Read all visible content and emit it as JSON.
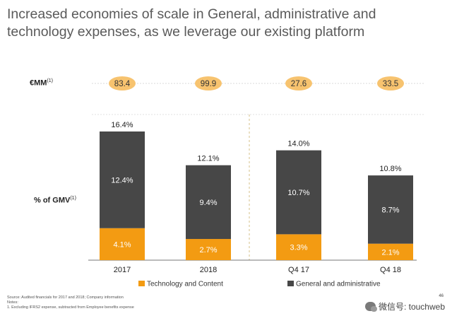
{
  "title": "Increased economies of scale in General, administrative and technology expenses, as we leverage our existing platform",
  "row_labels": {
    "mm": "€MM",
    "mm_note": "(1)",
    "gmv": "% of GMV",
    "gmv_note": "(1)"
  },
  "colors": {
    "orange": "#f39b12",
    "dark": "#474747",
    "pill": "#f7c36f",
    "divider": "#d6c28a"
  },
  "chart_data": {
    "type": "bar",
    "stacked": true,
    "categories": [
      "2017",
      "2018",
      "Q4 17",
      "Q4 18"
    ],
    "series": [
      {
        "name": "Technology and Content",
        "values": [
          4.1,
          2.7,
          3.3,
          2.1
        ],
        "labels": [
          "4.1%",
          "2.7%",
          "3.3%",
          "2.1%"
        ]
      },
      {
        "name": "General and administrative",
        "values": [
          12.4,
          9.4,
          10.7,
          8.7
        ],
        "labels": [
          "12.4%",
          "9.4%",
          "10.7%",
          "8.7%"
        ]
      }
    ],
    "totals": [
      "16.4%",
      "12.1%",
      "14.0%",
      "10.8%"
    ],
    "total_values": [
      16.4,
      12.1,
      14.0,
      10.8
    ],
    "eur_mm": [
      "83.4",
      "99.9",
      "27.6",
      "33.5"
    ],
    "ylabel": "% of GMV",
    "ylim": [
      0,
      16.4
    ],
    "legend_position": "bottom"
  },
  "footer": {
    "source": "Source: Audited financials for 2017 and 2018; Company information",
    "notes": "Notes:",
    "note1": "1.    Excluding IFRS2 expense, subtracted from Employee benefits expense"
  },
  "page_number": "46",
  "watermark": "微信号: touchweb"
}
